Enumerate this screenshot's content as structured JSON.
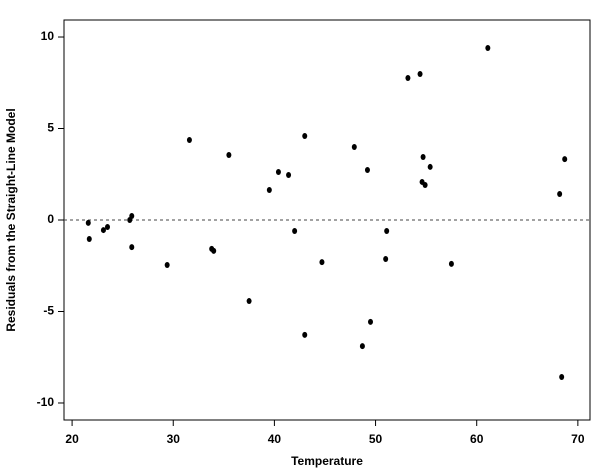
{
  "chart_data": {
    "type": "scatter",
    "xlabel": "Temperature",
    "ylabel": "Residuals from the Straight-Line Model",
    "x": [
      21.6,
      21.7,
      23.1,
      23.5,
      25.7,
      25.9,
      25.9,
      29.4,
      31.6,
      33.8,
      34.0,
      35.5,
      37.5,
      39.5,
      40.4,
      41.4,
      42.0,
      43.0,
      43.0,
      44.7,
      47.9,
      48.7,
      49.2,
      49.5,
      51.0,
      51.1,
      53.2,
      54.4,
      54.7,
      54.6,
      54.9,
      55.4,
      57.5,
      61.1,
      68.2,
      68.4,
      68.7
    ],
    "values": [
      -0.16,
      -1.04,
      -0.55,
      -0.38,
      0,
      0.22,
      -1.48,
      -2.46,
      4.37,
      -1.58,
      -1.69,
      3.55,
      -4.43,
      1.64,
      2.62,
      2.46,
      -0.6,
      4.59,
      -6.28,
      -2.3,
      3.99,
      -6.89,
      2.73,
      -5.57,
      -2.13,
      -0.6,
      7.76,
      7.98,
      3.44,
      2.08,
      1.91,
      2.9,
      -2.4,
      9.4,
      1.42,
      -8.58,
      3.33
    ],
    "color": "#000000",
    "xlim": [
      19.2,
      71.2
    ],
    "ylim": [
      -10.93,
      10.93
    ],
    "xticks": [
      20,
      30,
      40,
      50,
      60,
      70
    ],
    "yticks": [
      -10,
      -5,
      0,
      5,
      10
    ],
    "reference_line": 0
  }
}
